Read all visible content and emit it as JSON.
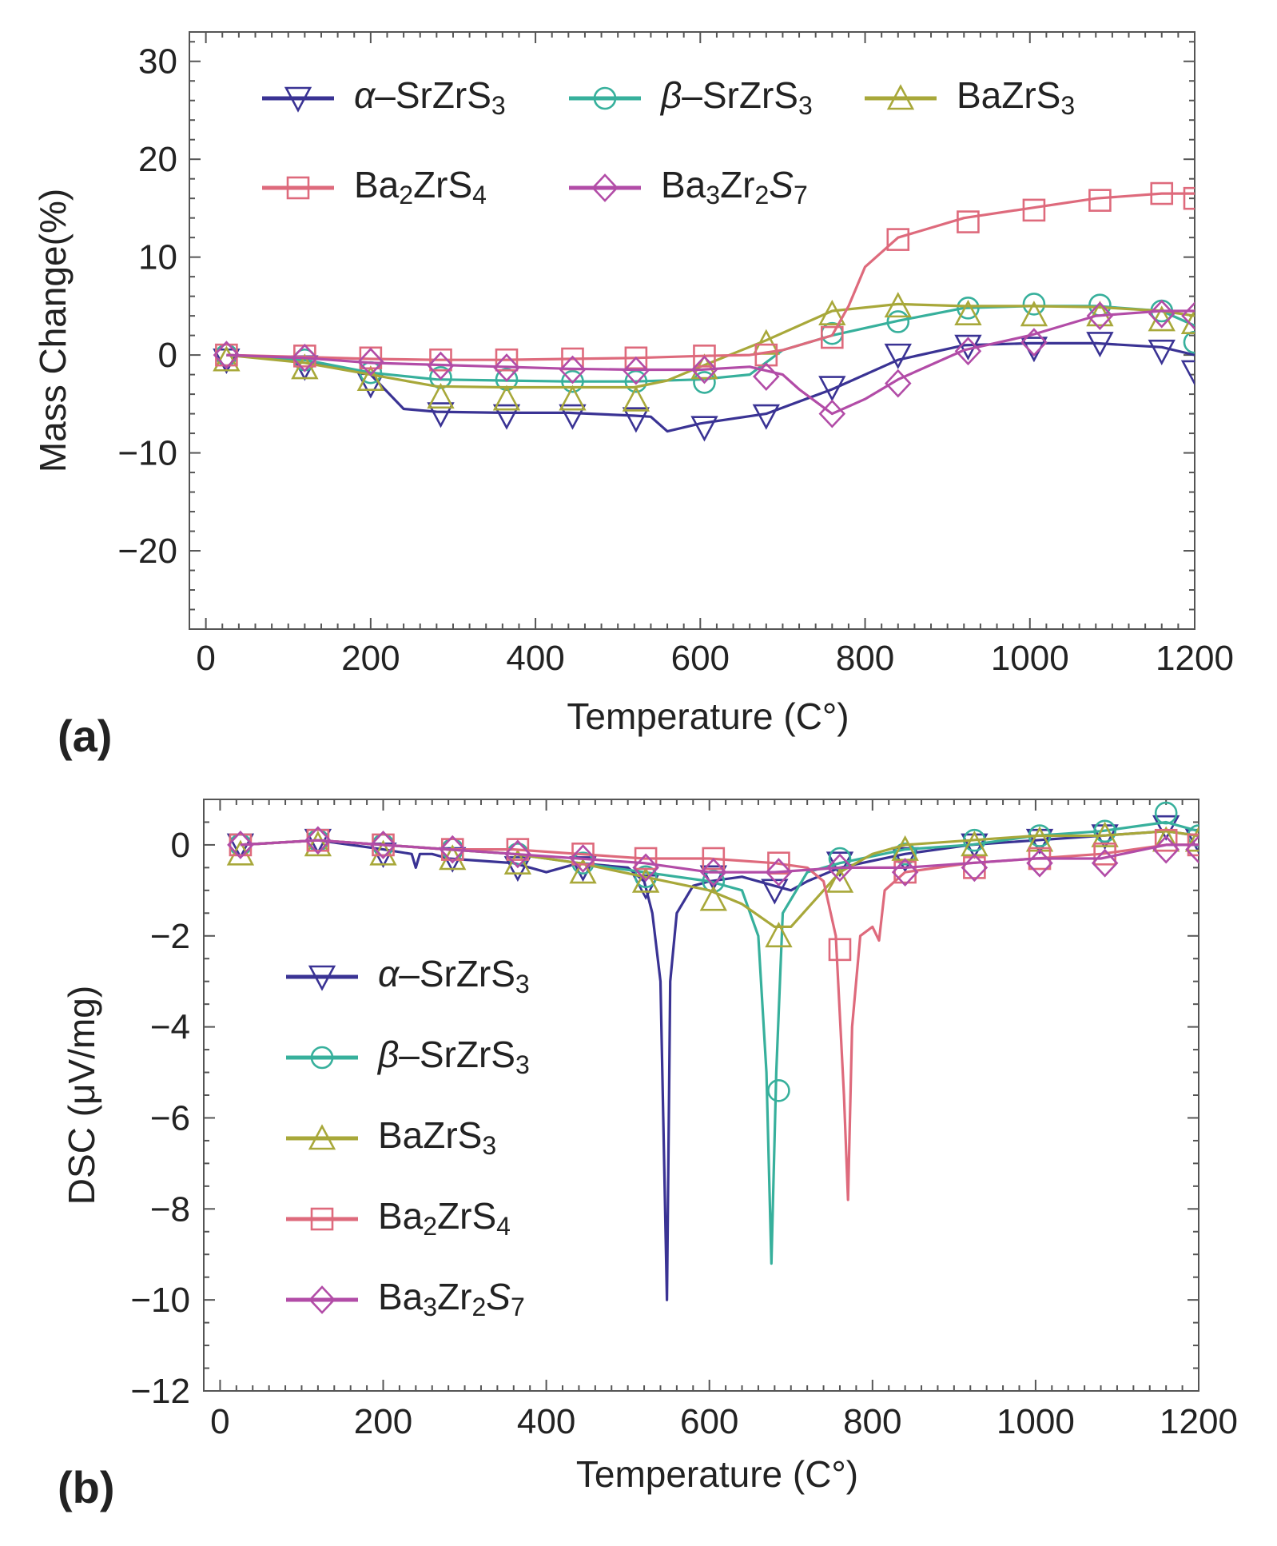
{
  "chart_data": [
    {
      "panel_label": "(a)",
      "type": "line",
      "xlabel": "Temperature (C°)",
      "ylabel": "Mass Change(%)",
      "xlim": [
        -20,
        1200
      ],
      "ylim": [
        -28,
        33
      ],
      "xticks": [
        0,
        200,
        400,
        600,
        800,
        1000,
        1200
      ],
      "yticks": [
        -20,
        -10,
        0,
        10,
        20,
        30
      ],
      "legend_position": "top",
      "series": [
        {
          "name": "α–SrZrS3",
          "legend": {
            "pre": "α–SrZrS",
            "sub": "3",
            "mid": "",
            "sub2": "",
            "post": ""
          },
          "color": "#3a3394",
          "marker": "triangle-down",
          "x": [
            25,
            120,
            200,
            240,
            280,
            360,
            440,
            520,
            540,
            560,
            600,
            680,
            760,
            840,
            920,
            1000,
            1080,
            1160,
            1200
          ],
          "y": [
            0,
            -0.5,
            -2,
            -5.5,
            -5.8,
            -5.9,
            -5.9,
            -6.2,
            -6.3,
            -7.8,
            -7,
            -6,
            -3.5,
            -0.5,
            1,
            1.2,
            1.2,
            0.8,
            0
          ],
          "marker_x": [
            25,
            120,
            200,
            285,
            365,
            445,
            522,
            605,
            680,
            760,
            840,
            925,
            1005,
            1085,
            1160,
            1200
          ],
          "marker_y": [
            -0.5,
            -1.2,
            -3,
            -6,
            -6.2,
            -6.2,
            -6.5,
            -7.4,
            -6.2,
            -3.3,
            0,
            0.9,
            0.7,
            1.2,
            0.4,
            -1.7
          ]
        },
        {
          "name": "β–SrZrS3",
          "legend": {
            "pre": "β–SrZrS",
            "sub": "3",
            "mid": "",
            "sub2": "",
            "post": ""
          },
          "color": "#37b09c",
          "marker": "circle",
          "x": [
            25,
            120,
            200,
            280,
            360,
            440,
            520,
            600,
            660,
            700,
            760,
            840,
            920,
            1000,
            1080,
            1160,
            1200
          ],
          "y": [
            0,
            -0.5,
            -1.8,
            -2.5,
            -2.6,
            -2.7,
            -2.7,
            -2.5,
            -2,
            0.5,
            2,
            3.5,
            4.8,
            5,
            5,
            4.5,
            3
          ],
          "marker_x": [
            25,
            120,
            200,
            285,
            365,
            445,
            522,
            605,
            760,
            840,
            925,
            1005,
            1085,
            1160,
            1200
          ],
          "marker_y": [
            0,
            -0.5,
            -1.8,
            -2.3,
            -2.5,
            -2.7,
            -2.7,
            -2.8,
            2.2,
            3.4,
            4.8,
            5.2,
            5.1,
            4.5,
            1.3
          ]
        },
        {
          "name": "BaZrS3",
          "legend": {
            "pre": "BaZrS",
            "sub": "3",
            "mid": "",
            "sub2": "",
            "post": ""
          },
          "color": "#a8a83a",
          "marker": "triangle-up",
          "x": [
            25,
            120,
            200,
            280,
            360,
            440,
            520,
            560,
            600,
            680,
            760,
            840,
            920,
            1000,
            1080,
            1160,
            1200
          ],
          "y": [
            0,
            -0.8,
            -2,
            -3.2,
            -3.3,
            -3.3,
            -3.3,
            -2.6,
            -1.2,
            1.5,
            4.5,
            5.2,
            5,
            5,
            4.9,
            4.5,
            4
          ],
          "marker_x": [
            25,
            120,
            200,
            285,
            365,
            445,
            522,
            605,
            680,
            760,
            840,
            925,
            1005,
            1085,
            1160,
            1200
          ],
          "marker_y": [
            -0.5,
            -1.3,
            -2.5,
            -4.3,
            -4.5,
            -4.5,
            -4.6,
            -1.3,
            1.2,
            4.2,
            5,
            4.2,
            4.1,
            4.1,
            3.6,
            3.3
          ]
        },
        {
          "name": "Ba2ZrS4",
          "legend": {
            "pre": "Ba",
            "sub": "2",
            "mid": "ZrS",
            "sub2": "4",
            "post": ""
          },
          "color": "#de6a7c",
          "marker": "square",
          "x": [
            25,
            120,
            200,
            280,
            360,
            440,
            520,
            600,
            660,
            700,
            760,
            780,
            800,
            840,
            920,
            1000,
            1080,
            1160,
            1200
          ],
          "y": [
            0,
            -0.2,
            -0.4,
            -0.5,
            -0.5,
            -0.4,
            -0.3,
            -0.1,
            0,
            0.5,
            2,
            5,
            9,
            12,
            14,
            15,
            16,
            16.5,
            16.5
          ],
          "marker_x": [
            25,
            120,
            200,
            285,
            365,
            445,
            522,
            605,
            680,
            760,
            840,
            925,
            1005,
            1085,
            1160,
            1200
          ],
          "marker_y": [
            0,
            -0.1,
            -0.3,
            -0.5,
            -0.5,
            -0.4,
            -0.3,
            -0.1,
            0,
            1.8,
            11.8,
            13.6,
            14.8,
            15.8,
            16.5,
            16
          ]
        },
        {
          "name": "Ba3Zr2S7",
          "legend": {
            "pre": "Ba",
            "sub": "3",
            "mid": "Zr",
            "sub2": "2",
            "post": "S7"
          },
          "color": "#b24ca7",
          "marker": "diamond",
          "x": [
            25,
            120,
            200,
            280,
            360,
            440,
            520,
            600,
            660,
            700,
            720,
            760,
            800,
            840,
            920,
            1000,
            1080,
            1160,
            1200
          ],
          "y": [
            0,
            -0.3,
            -0.8,
            -1,
            -1.2,
            -1.4,
            -1.5,
            -1.5,
            -1.2,
            -2,
            -3.5,
            -6,
            -4.5,
            -2.5,
            0.5,
            2,
            4,
            4.5,
            4.5
          ],
          "marker_x": [
            25,
            120,
            200,
            285,
            365,
            445,
            522,
            605,
            680,
            760,
            840,
            925,
            1005,
            1085,
            1160,
            1200
          ],
          "marker_y": [
            0,
            -0.3,
            -0.7,
            -1.1,
            -1.3,
            -1.5,
            -1.6,
            -1.5,
            -2.2,
            -6,
            -2.9,
            0.4,
            1.3,
            4,
            4.2,
            4
          ]
        }
      ]
    },
    {
      "panel_label": "(b)",
      "type": "line",
      "xlabel": "Temperature (C°)",
      "ylabel": "DSC (μV/mg)",
      "xlim": [
        -20,
        1200
      ],
      "ylim": [
        -12,
        1
      ],
      "xticks": [
        0,
        200,
        400,
        600,
        800,
        1000,
        1200
      ],
      "yticks": [
        -12,
        -10,
        -8,
        -6,
        -4,
        -2,
        0
      ],
      "legend_position": "left",
      "series": [
        {
          "name": "α–SrZrS3",
          "legend": {
            "pre": "α–SrZrS",
            "sub": "3",
            "mid": "",
            "sub2": "",
            "post": ""
          },
          "color": "#3a3394",
          "marker": "triangle-down",
          "x": [
            25,
            120,
            200,
            235,
            240,
            245,
            260,
            280,
            360,
            400,
            440,
            500,
            520,
            530,
            540,
            548,
            552,
            560,
            580,
            600,
            640,
            680,
            700,
            720,
            760,
            840,
            920,
            1000,
            1080,
            1160,
            1200
          ],
          "y": [
            0,
            0.1,
            -0.1,
            -0.2,
            -0.5,
            -0.2,
            -0.2,
            -0.3,
            -0.4,
            -0.6,
            -0.4,
            -0.5,
            -0.8,
            -1.5,
            -3,
            -10,
            -3,
            -1.5,
            -0.9,
            -0.8,
            -0.7,
            -0.9,
            -1,
            -0.8,
            -0.5,
            -0.2,
            0,
            0.1,
            0.2,
            0.3,
            0.2
          ],
          "marker_x": [
            25,
            120,
            200,
            285,
            365,
            445,
            522,
            605,
            680,
            760,
            840,
            925,
            1005,
            1085,
            1160,
            1200
          ],
          "marker_y": [
            0,
            0.1,
            -0.2,
            -0.3,
            -0.5,
            -0.5,
            -0.9,
            -0.7,
            -1,
            -0.4,
            -0.3,
            0,
            0.1,
            0.2,
            0.4,
            0.1
          ]
        },
        {
          "name": "β–SrZrS3",
          "legend": {
            "pre": "β–SrZrS",
            "sub": "3",
            "mid": "",
            "sub2": "",
            "post": ""
          },
          "color": "#37b09c",
          "marker": "circle",
          "x": [
            25,
            120,
            200,
            280,
            360,
            440,
            520,
            600,
            640,
            660,
            670,
            676,
            682,
            690,
            720,
            760,
            840,
            920,
            1000,
            1080,
            1160,
            1200
          ],
          "y": [
            0,
            0.1,
            0,
            -0.1,
            -0.2,
            -0.4,
            -0.6,
            -0.8,
            -1,
            -2,
            -5,
            -9.2,
            -5,
            -1.5,
            -0.6,
            -0.4,
            -0.1,
            0,
            0.2,
            0.3,
            0.5,
            0.3
          ],
          "marker_x": [
            25,
            120,
            200,
            285,
            365,
            445,
            522,
            605,
            685,
            760,
            840,
            925,
            1005,
            1085,
            1160,
            1200
          ],
          "marker_y": [
            0,
            0.1,
            0,
            -0.1,
            -0.2,
            -0.4,
            -0.7,
            -0.8,
            -5.4,
            -0.3,
            -0.2,
            0.1,
            0.2,
            0.3,
            0.7,
            0.2
          ]
        },
        {
          "name": "BaZrS3",
          "legend": {
            "pre": "BaZrS",
            "sub": "3",
            "mid": "",
            "sub2": "",
            "post": ""
          },
          "color": "#a8a83a",
          "marker": "triangle-up",
          "x": [
            25,
            120,
            200,
            280,
            360,
            440,
            520,
            600,
            640,
            680,
            700,
            720,
            760,
            800,
            840,
            920,
            1000,
            1080,
            1160,
            1200
          ],
          "y": [
            0,
            0.1,
            0,
            -0.1,
            -0.2,
            -0.4,
            -0.7,
            -1,
            -1.3,
            -1.8,
            -1.8,
            -1.4,
            -0.6,
            -0.2,
            0,
            0.1,
            0.2,
            0.2,
            0.3,
            0.2
          ],
          "marker_x": [
            25,
            120,
            200,
            285,
            365,
            445,
            522,
            605,
            685,
            760,
            840,
            925,
            1005,
            1085,
            1160,
            1200
          ],
          "marker_y": [
            -0.2,
            0,
            -0.2,
            -0.3,
            -0.4,
            -0.6,
            -0.8,
            -1.2,
            -2,
            -0.8,
            -0.1,
            0,
            0.1,
            0.2,
            0.1,
            0.1
          ]
        },
        {
          "name": "Ba2ZrS4",
          "legend": {
            "pre": "Ba",
            "sub": "2",
            "mid": "ZrS",
            "sub2": "4",
            "post": ""
          },
          "color": "#de6a7c",
          "marker": "square",
          "x": [
            25,
            120,
            200,
            280,
            360,
            440,
            520,
            600,
            680,
            720,
            740,
            755,
            765,
            770,
            775,
            785,
            800,
            808,
            815,
            840,
            920,
            1000,
            1080,
            1160,
            1200
          ],
          "y": [
            0,
            0.1,
            0,
            -0.1,
            -0.1,
            -0.2,
            -0.3,
            -0.3,
            -0.4,
            -0.5,
            -0.8,
            -2,
            -5.5,
            -7.8,
            -4,
            -2,
            -1.8,
            -2.1,
            -1,
            -0.6,
            -0.4,
            -0.3,
            -0.2,
            0,
            0
          ],
          "marker_x": [
            25,
            120,
            200,
            285,
            365,
            445,
            522,
            605,
            685,
            760,
            840,
            925,
            1005,
            1085,
            1160,
            1200
          ],
          "marker_y": [
            0,
            0.1,
            0,
            -0.1,
            -0.1,
            -0.2,
            -0.3,
            -0.3,
            -0.4,
            -2.3,
            -0.6,
            -0.5,
            -0.3,
            -0.2,
            0.1,
            0
          ]
        },
        {
          "name": "Ba3Zr2S7",
          "legend": {
            "pre": "Ba",
            "sub": "3",
            "mid": "Zr",
            "sub2": "2",
            "post": "S7"
          },
          "color": "#b24ca7",
          "marker": "diamond",
          "x": [
            25,
            120,
            200,
            280,
            360,
            440,
            520,
            600,
            680,
            760,
            840,
            920,
            1000,
            1080,
            1160,
            1200
          ],
          "y": [
            0,
            0.1,
            0,
            -0.1,
            -0.2,
            -0.3,
            -0.4,
            -0.6,
            -0.6,
            -0.5,
            -0.5,
            -0.4,
            -0.3,
            -0.3,
            0,
            0
          ],
          "marker_x": [
            25,
            120,
            200,
            285,
            365,
            445,
            522,
            605,
            685,
            760,
            840,
            925,
            1005,
            1085,
            1160,
            1200
          ],
          "marker_y": [
            0,
            0.1,
            0,
            -0.1,
            -0.2,
            -0.3,
            -0.5,
            -0.6,
            -0.6,
            -0.5,
            -0.6,
            -0.5,
            -0.4,
            -0.4,
            -0.1,
            -0.1
          ]
        }
      ]
    }
  ]
}
